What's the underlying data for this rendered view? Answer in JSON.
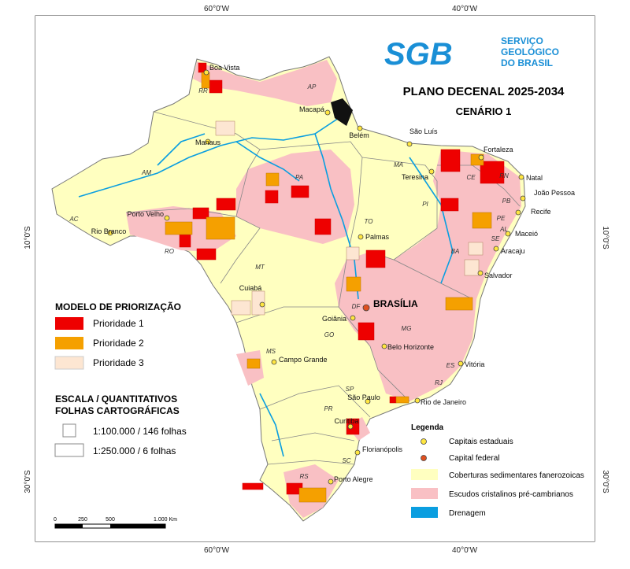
{
  "map": {
    "coordinates": {
      "top": [
        "60°0'W",
        "40°0'W"
      ],
      "bottom": [
        "60°0'W",
        "40°0'W"
      ],
      "left": [
        "10°0'S",
        "30°0'S"
      ],
      "right": [
        "10°0'S",
        "30°0'S"
      ]
    },
    "logo": {
      "mark": "SGB",
      "lines": [
        "SERVIÇO",
        "GEOLÓGICO",
        "DO BRASIL"
      ]
    },
    "title": "PLANO DECENAL 2025-2034",
    "subtitle": "CENÁRIO 1",
    "priority_legend": {
      "title": "MODELO DE PRIORIZAÇÃO",
      "items": [
        "Prioridade 1",
        "Prioridade 2",
        "Prioridade 3"
      ]
    },
    "scale_legend": {
      "title": [
        "ESCALA / QUANTITATIVOS",
        "FOLHAS CARTOGRÁFICAS"
      ],
      "items": [
        "1:100.000 / 146 folhas",
        "1:250.000 / 6 folhas"
      ]
    },
    "scale_bar": [
      "0",
      "250",
      "500",
      "1.000 Km"
    ],
    "legend": {
      "title": "Legenda",
      "items": [
        "Capitais estaduais",
        "Capital federal",
        "Coberturas sedimentares fanerozoicas",
        "Escudos cristalinos pré-cambrianos",
        "Drenagem"
      ]
    },
    "capital": "BRASÍLIA",
    "cities": [
      "Boa Vista",
      "Macapá",
      "Manaus",
      "Belém",
      "São Luís",
      "Fortaleza",
      "Teresina",
      "Natal",
      "João Pessoa",
      "Recife",
      "Maceió",
      "Aracaju",
      "Salvador",
      "Palmas",
      "Porto Velho",
      "Rio Branco",
      "Cuiabá",
      "Goiânia",
      "Belo Horizonte",
      "Vitória",
      "Campo Grande",
      "São Paulo",
      "Rio de Janeiro",
      "Curitiba",
      "Florianópolis",
      "Porto Alegre"
    ],
    "states": [
      "RR",
      "AP",
      "AM",
      "PA",
      "MA",
      "CE",
      "RN",
      "PB",
      "PE",
      "AL",
      "SE",
      "PI",
      "TO",
      "BA",
      "AC",
      "RO",
      "MT",
      "DF",
      "GO",
      "MG",
      "ES",
      "MS",
      "SP",
      "RJ",
      "PR",
      "SC",
      "RS"
    ]
  }
}
